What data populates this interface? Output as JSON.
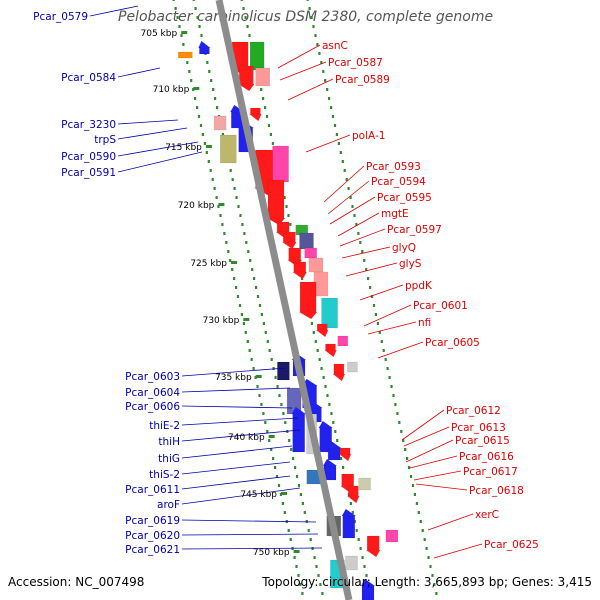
{
  "title": "Pelobacter carbinolicus DSM 2380, complete genome",
  "accession_label": "Accession:",
  "accession": "NC_007498",
  "topology_label": "Topology:",
  "topology": "circular;",
  "length_label": "Length:",
  "length": "3,665,893 bp;",
  "genes_label": "Genes:",
  "genes": "3,415",
  "colors": {
    "backbone": "#8c8c8c",
    "tick": "#2e8b2e",
    "left_label": "#0000aa",
    "right_label": "#dd0000"
  },
  "scale_labels": [
    "705 kbp",
    "710 kbp",
    "715 kbp",
    "720 kbp",
    "725 kbp",
    "730 kbp",
    "735 kbp",
    "740 kbp",
    "745 kbp",
    "750 kbp"
  ],
  "left_labels": [
    "Pcar_0579",
    "Pcar_0584",
    "Pcar_3230",
    "trpS",
    "Pcar_0590",
    "Pcar_0591",
    "Pcar_0603",
    "Pcar_0604",
    "Pcar_0606",
    "thiE-2",
    "thiH",
    "thiG",
    "thiS-2",
    "Pcar_0611",
    "aroF",
    "Pcar_0619",
    "Pcar_0620",
    "Pcar_0621"
  ],
  "right_labels": [
    "asnC",
    "Pcar_0587",
    "Pcar_0589",
    "polA-1",
    "Pcar_0593",
    "Pcar_0594",
    "Pcar_0595",
    "mgtE",
    "Pcar_0597",
    "glyQ",
    "glyS",
    "ppdK",
    "Pcar_0601",
    "nfi",
    "Pcar_0605",
    "Pcar_0612",
    "Pcar_0613",
    "Pcar_0615",
    "Pcar_0616",
    "Pcar_0617",
    "Pcar_0618",
    "xerC",
    "Pcar_0625"
  ]
}
